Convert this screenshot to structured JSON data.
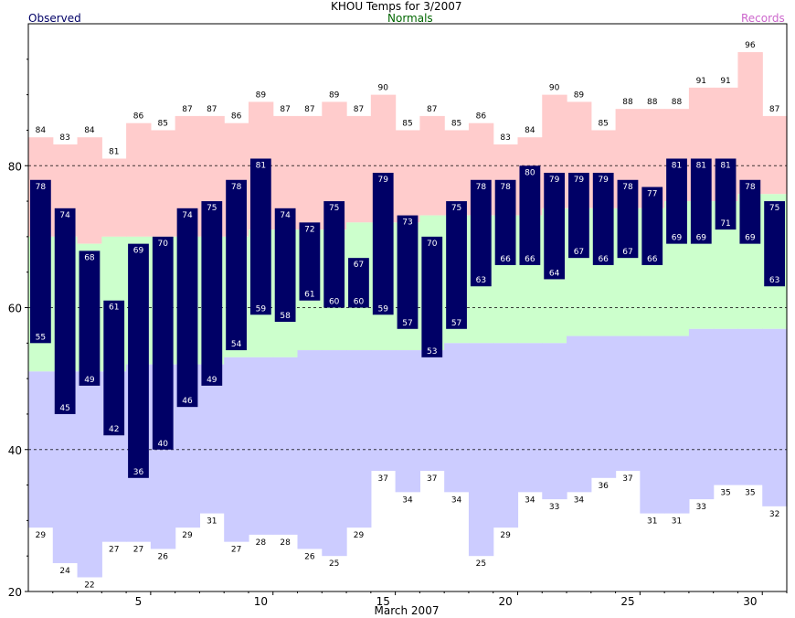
{
  "colors": {
    "observed": "#000066",
    "normals": "#006600",
    "records": "#cc66cc",
    "record_band": "#ffcccc",
    "normal_band": "#ccffcc",
    "low_band": "#ccccff",
    "bar": "#000066"
  },
  "chart_data": {
    "type": "bar",
    "title": "KHOU Temps for 3/2007",
    "legend": {
      "observed": "Observed",
      "normals": "Normals",
      "records": "Records"
    },
    "xlabel": "March 2007",
    "ylabel": "",
    "xlim": [
      1,
      31
    ],
    "ylim": [
      20,
      100
    ],
    "x_ticks": [
      5,
      10,
      15,
      20,
      25,
      30
    ],
    "y_ticks": [
      20,
      40,
      60,
      80
    ],
    "grid_lines": [
      40,
      60,
      80
    ],
    "days": [
      1,
      2,
      3,
      4,
      5,
      6,
      7,
      8,
      9,
      10,
      11,
      12,
      13,
      14,
      15,
      16,
      17,
      18,
      19,
      20,
      21,
      22,
      23,
      24,
      25,
      26,
      27,
      28,
      29,
      30,
      31
    ],
    "record_high": [
      84,
      83,
      84,
      81,
      86,
      85,
      87,
      87,
      86,
      89,
      87,
      87,
      89,
      87,
      90,
      85,
      87,
      85,
      86,
      83,
      84,
      90,
      89,
      85,
      88,
      88,
      88,
      91,
      91,
      96,
      87
    ],
    "record_low": [
      29,
      24,
      22,
      27,
      27,
      26,
      29,
      31,
      27,
      28,
      28,
      26,
      25,
      29,
      37,
      34,
      37,
      34,
      25,
      29,
      34,
      33,
      34,
      36,
      37,
      31,
      31,
      33,
      35,
      35,
      32
    ],
    "normal_high": [
      70,
      70,
      69,
      70,
      70,
      70,
      70,
      70,
      70,
      71,
      71,
      71,
      71,
      72,
      72,
      72,
      73,
      73,
      73,
      73,
      73,
      74,
      74,
      74,
      74,
      74,
      75,
      75,
      75,
      76,
      76
    ],
    "normal_low": [
      51,
      51,
      51,
      51,
      52,
      52,
      52,
      52,
      53,
      53,
      53,
      54,
      54,
      54,
      54,
      54,
      54,
      55,
      55,
      55,
      55,
      55,
      56,
      56,
      56,
      56,
      56,
      57,
      57,
      57,
      57
    ],
    "observed_high": [
      78,
      74,
      68,
      61,
      69,
      70,
      74,
      75,
      78,
      81,
      74,
      72,
      75,
      67,
      79,
      73,
      70,
      75,
      78,
      78,
      80,
      79,
      79,
      79,
      78,
      77,
      81,
      81,
      81,
      78,
      75
    ],
    "observed_low": [
      55,
      45,
      49,
      42,
      36,
      40,
      46,
      49,
      54,
      59,
      58,
      61,
      60,
      60,
      59,
      57,
      53,
      57,
      63,
      66,
      66,
      64,
      67,
      66,
      67,
      66,
      69,
      69,
      71,
      69,
      63
    ]
  }
}
